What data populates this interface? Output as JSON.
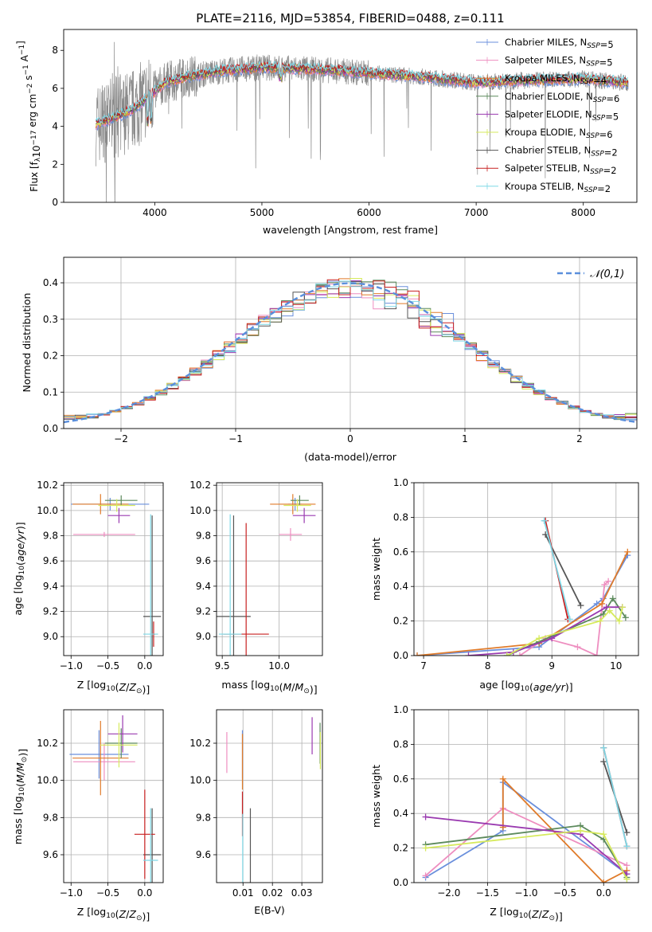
{
  "figure_title": "PLATE=2116, MJD=53854, FIBERID=0488, z=0.111",
  "colors": {
    "Chabrier MILES": "#6a8fdc",
    "Salpeter MILES": "#ee8ec0",
    "Kroupa MILES": "#e07b2a",
    "Chabrier ELODIE": "#5c8a5c",
    "Salpeter ELODIE": "#9a3ab0",
    "Kroupa ELODIE": "#d6ea5c",
    "Chabrier STELIB": "#555555",
    "Salpeter STELIB": "#c82020",
    "Kroupa STELIB": "#7ed8e6"
  },
  "chart_data": [
    {
      "id": "spectrum",
      "type": "line",
      "xlabel": "wavelength [Angstrom, rest frame]",
      "ylabel_parts": [
        "Flux [f",
        "λ",
        "10",
        "−17",
        " erg cm",
        "−2",
        " s",
        "−1",
        " A",
        "−1",
        "]"
      ],
      "xlim": [
        3150,
        8500
      ],
      "ylim": [
        0,
        9.1
      ],
      "xticks": [
        4000,
        5000,
        6000,
        7000,
        8000
      ],
      "yticks": [
        0,
        2,
        4,
        6,
        8
      ],
      "grid": false,
      "legend": "top-right",
      "legend_entries": [
        {
          "name": "Chabrier MILES",
          "nssp": "5"
        },
        {
          "name": "Salpeter MILES",
          "nssp": "5"
        },
        {
          "name": "Kroupa MILES",
          "nssp": "4"
        },
        {
          "name": "Chabrier ELODIE",
          "nssp": "6"
        },
        {
          "name": "Salpeter ELODIE",
          "nssp": "5"
        },
        {
          "name": "Kroupa ELODIE",
          "nssp": "6"
        },
        {
          "name": "Chabrier STELIB",
          "nssp": "2"
        },
        {
          "name": "Salpeter STELIB",
          "nssp": "2"
        },
        {
          "name": "Kroupa STELIB",
          "nssp": "2"
        }
      ],
      "continuum": [
        [
          3450,
          4.1
        ],
        [
          3600,
          4.4
        ],
        [
          3800,
          4.9
        ],
        [
          3950,
          5.6
        ],
        [
          4100,
          6.3
        ],
        [
          4300,
          6.6
        ],
        [
          4600,
          6.9
        ],
        [
          5000,
          7.1
        ],
        [
          5500,
          7.0
        ],
        [
          6000,
          6.8
        ],
        [
          6500,
          6.6
        ],
        [
          7000,
          6.3
        ],
        [
          7400,
          6.4
        ],
        [
          8000,
          6.5
        ],
        [
          8400,
          6.3
        ]
      ]
    },
    {
      "id": "residuals",
      "type": "histogram",
      "xlabel": "(data-model)/error",
      "ylabel": "Normed distribution",
      "xlim": [
        -2.5,
        2.5
      ],
      "ylim": [
        0,
        0.47
      ],
      "xticks": [
        -2,
        -1,
        0,
        1,
        2
      ],
      "yticks": [
        0.0,
        0.1,
        0.2,
        0.3,
        0.4
      ],
      "grid": true,
      "legend": "top-right",
      "reference_curve": {
        "name": "𝒩(0,1)",
        "mean": 0,
        "sigma": 1,
        "color": "#5a8fdc"
      },
      "bin_width": 0.1
    },
    {
      "id": "age-vs-Z",
      "type": "scatter",
      "xlabel_main": "Z [log",
      "xlabel_sub": "10",
      "xlabel_rest": "(Z/Z",
      "xlabel_sun": "⊙",
      "xlabel_end": ")]",
      "ylabel": "age  [log₁₀(age/yr)]",
      "xlim": [
        -1.1,
        0.25
      ],
      "ylim": [
        8.85,
        10.22
      ],
      "xticks": [
        -1.0,
        -0.5,
        0.0
      ],
      "yticks": [
        9.0,
        9.2,
        9.4,
        9.6,
        9.8,
        10.0,
        10.2
      ],
      "grid": true,
      "points": [
        {
          "model": "Chabrier MILES",
          "x": -0.47,
          "xerr": 0.53,
          "y": 10.05,
          "yerr": 0.05
        },
        {
          "model": "Salpeter MILES",
          "x": -0.55,
          "xerr": 0.42,
          "y": 9.81,
          "yerr": 0.02
        },
        {
          "model": "Kroupa MILES",
          "x": -0.6,
          "xerr": 0.38,
          "y": 10.05,
          "yerr": 0.08
        },
        {
          "model": "Chabrier ELODIE",
          "x": -0.32,
          "xerr": 0.22,
          "y": 10.08,
          "yerr": 0.04
        },
        {
          "model": "Salpeter ELODIE",
          "x": -0.35,
          "xerr": 0.15,
          "y": 9.96,
          "yerr": 0.06
        },
        {
          "model": "Kroupa ELODIE",
          "x": -0.38,
          "xerr": 0.25,
          "y": 10.04,
          "yerr": 0.05
        },
        {
          "model": "Chabrier STELIB",
          "x": 0.1,
          "xerr": 0.12,
          "y": 9.16,
          "yerr": 0.8
        },
        {
          "model": "Salpeter STELIB",
          "x": 0.12,
          "xerr": 0.02,
          "y": 9.02,
          "yerr": 0.1
        },
        {
          "model": "Kroupa STELIB",
          "x": 0.08,
          "xerr": 0.1,
          "y": 9.02,
          "yerr": 0.95
        }
      ]
    },
    {
      "id": "age-vs-mass",
      "type": "scatter",
      "xlabel_main": "mass [log",
      "xlabel_sub": "10",
      "xlabel_rest": "(M/M",
      "xlabel_sun": "⊙",
      "xlabel_end": ")]",
      "xlim": [
        9.45,
        10.38
      ],
      "ylim": [
        8.85,
        10.22
      ],
      "xticks": [
        9.5,
        10.0
      ],
      "yticks": [
        9.0,
        9.2,
        9.4,
        9.6,
        9.8,
        10.0,
        10.2
      ],
      "grid": true,
      "points": [
        {
          "model": "Chabrier MILES",
          "x": 10.14,
          "xerr": 0.06,
          "y": 10.05,
          "yerr": 0.05
        },
        {
          "model": "Salpeter MILES",
          "x": 10.1,
          "xerr": 0.1,
          "y": 9.81,
          "yerr": 0.05
        },
        {
          "model": "Kroupa MILES",
          "x": 10.12,
          "xerr": 0.2,
          "y": 10.05,
          "yerr": 0.08
        },
        {
          "model": "Chabrier ELODIE",
          "x": 10.18,
          "xerr": 0.08,
          "y": 10.08,
          "yerr": 0.04
        },
        {
          "model": "Salpeter ELODIE",
          "x": 10.22,
          "xerr": 0.1,
          "y": 9.96,
          "yerr": 0.06
        },
        {
          "model": "Kroupa ELODIE",
          "x": 10.16,
          "xerr": 0.12,
          "y": 10.04,
          "yerr": 0.05
        },
        {
          "model": "Chabrier STELIB",
          "x": 9.6,
          "xerr": 0.15,
          "y": 9.16,
          "yerr": 0.8
        },
        {
          "model": "Salpeter STELIB",
          "x": 9.71,
          "xerr": 0.2,
          "y": 9.02,
          "yerr": 0.88
        },
        {
          "model": "Kroupa STELIB",
          "x": 9.57,
          "xerr": 0.1,
          "y": 9.02,
          "yerr": 0.95
        }
      ]
    },
    {
      "id": "weight-vs-age",
      "type": "line",
      "xlabel_main": "age  [log",
      "xlabel_sub": "10",
      "xlabel_rest": "(age/yr)]",
      "ylabel": "mass weight",
      "xlim": [
        6.85,
        10.35
      ],
      "ylim": [
        0,
        1.0
      ],
      "xticks": [
        7,
        8,
        9,
        10
      ],
      "yticks": [
        0.0,
        0.2,
        0.4,
        0.6,
        0.8,
        1.0
      ],
      "grid": true,
      "series": [
        {
          "model": "Chabrier MILES",
          "x": [
            6.9,
            8.8,
            9.7,
            9.8,
            10.18
          ],
          "y": [
            0.0,
            0.05,
            0.3,
            0.33,
            0.58
          ]
        },
        {
          "model": "Salpeter MILES",
          "x": [
            8.5,
            8.9,
            9.4,
            9.7,
            9.82,
            9.88
          ],
          "y": [
            0.0,
            0.1,
            0.05,
            0.0,
            0.41,
            0.43
          ]
        },
        {
          "model": "Kroupa MILES",
          "x": [
            6.9,
            8.8,
            9.78,
            10.18
          ],
          "y": [
            0.0,
            0.07,
            0.3,
            0.6
          ]
        },
        {
          "model": "Chabrier ELODIE",
          "x": [
            8.3,
            8.8,
            9.8,
            9.95,
            10.15
          ],
          "y": [
            0.0,
            0.08,
            0.24,
            0.33,
            0.22
          ]
        },
        {
          "model": "Salpeter ELODIE",
          "x": [
            7.7,
            8.4,
            9.0,
            9.85,
            10.1
          ],
          "y": [
            0.0,
            0.02,
            0.1,
            0.28,
            0.28
          ]
        },
        {
          "model": "Kroupa ELODIE",
          "x": [
            8.3,
            8.8,
            9.75,
            9.9,
            10.05,
            10.1
          ],
          "y": [
            0.0,
            0.1,
            0.2,
            0.26,
            0.2,
            0.28
          ]
        },
        {
          "model": "Chabrier STELIB",
          "x": [
            8.9,
            9.45
          ],
          "y": [
            0.7,
            0.29
          ]
        },
        {
          "model": "Salpeter STELIB",
          "x": [
            8.9,
            9.25
          ],
          "y": [
            0.78,
            0.21
          ]
        },
        {
          "model": "Kroupa STELIB",
          "x": [
            8.88,
            9.28
          ],
          "y": [
            0.78,
            0.21
          ]
        }
      ]
    },
    {
      "id": "mass-vs-Z",
      "type": "scatter",
      "xlabel_main": "Z [log",
      "xlabel_sub": "10",
      "xlabel_rest": "(Z/Z",
      "xlabel_sun": "⊙",
      "xlabel_end": ")]",
      "ylabel_main": "mass [log",
      "ylabel_sub": "10",
      "ylabel_rest": "(M/M",
      "ylabel_sun": "⊙",
      "ylabel_end": ")]",
      "xlim": [
        -1.1,
        0.25
      ],
      "ylim": [
        9.45,
        10.38
      ],
      "xticks": [
        -1.0,
        -0.5,
        0.0
      ],
      "yticks": [
        9.6,
        9.8,
        10.0,
        10.2
      ],
      "grid": true,
      "points": [
        {
          "model": "Chabrier MILES",
          "x": -0.62,
          "xerr": 0.4,
          "y": 10.14,
          "yerr": 0.13
        },
        {
          "model": "Salpeter MILES",
          "x": -0.55,
          "xerr": 0.42,
          "y": 10.1,
          "yerr": 0.1
        },
        {
          "model": "Kroupa MILES",
          "x": -0.6,
          "xerr": 0.38,
          "y": 10.12,
          "yerr": 0.2
        },
        {
          "model": "Chabrier ELODIE",
          "x": -0.32,
          "xerr": 0.22,
          "y": 10.2,
          "yerr": 0.08
        },
        {
          "model": "Salpeter ELODIE",
          "x": -0.3,
          "xerr": 0.2,
          "y": 10.25,
          "yerr": 0.1
        },
        {
          "model": "Kroupa ELODIE",
          "x": -0.35,
          "xerr": 0.25,
          "y": 10.19,
          "yerr": 0.12
        },
        {
          "model": "Chabrier STELIB",
          "x": 0.1,
          "xerr": 0.12,
          "y": 9.6,
          "yerr": 0.25
        },
        {
          "model": "Salpeter STELIB",
          "x": 0.0,
          "xerr": 0.14,
          "y": 9.71,
          "yerr": 0.24
        },
        {
          "model": "Kroupa STELIB",
          "x": 0.08,
          "xerr": 0.1,
          "y": 9.57,
          "yerr": 0.28
        }
      ]
    },
    {
      "id": "mass-vs-EBV",
      "type": "scatter",
      "xlabel": "E(B-V)",
      "xlim": [
        0.001,
        0.037
      ],
      "ylim": [
        9.45,
        10.38
      ],
      "xticks": [
        0.01,
        0.02,
        0.03
      ],
      "yticks": [
        9.6,
        9.8,
        10.0,
        10.2
      ],
      "grid": true,
      "points": [
        {
          "model": "Chabrier MILES",
          "x": 0.0098,
          "xerr": 0,
          "y": 10.14,
          "yerr": 0.13
        },
        {
          "model": "Salpeter MILES",
          "x": 0.0045,
          "xerr": 0,
          "y": 10.15,
          "yerr": 0.11
        },
        {
          "model": "Kroupa MILES",
          "x": 0.0098,
          "xerr": 0,
          "y": 10.1,
          "yerr": 0.15
        },
        {
          "model": "Chabrier ELODIE",
          "x": 0.0362,
          "xerr": 0,
          "y": 10.2,
          "yerr": 0.11
        },
        {
          "model": "Salpeter ELODIE",
          "x": 0.0335,
          "xerr": 0,
          "y": 10.24,
          "yerr": 0.1
        },
        {
          "model": "Kroupa ELODIE",
          "x": 0.0363,
          "xerr": 0,
          "y": 10.16,
          "yerr": 0.1
        },
        {
          "model": "Chabrier STELIB",
          "x": 0.0125,
          "xerr": 0,
          "y": 9.63,
          "yerr": 0.22
        },
        {
          "model": "Salpeter STELIB",
          "x": 0.0098,
          "xerr": 0,
          "y": 9.82,
          "yerr": 0.12
        },
        {
          "model": "Kroupa STELIB",
          "x": 0.0099,
          "xerr": 0,
          "y": 9.62,
          "yerr": 0.2
        }
      ]
    },
    {
      "id": "weight-vs-Z",
      "type": "line",
      "xlabel_main": "Z [log",
      "xlabel_sub": "10",
      "xlabel_rest": "(Z/Z",
      "xlabel_sun": "⊙",
      "xlabel_end": ")]",
      "ylabel": "mass weight",
      "xlim": [
        -2.45,
        0.45
      ],
      "ylim": [
        0,
        1.0
      ],
      "xticks": [
        -2.0,
        -1.5,
        -1.0,
        -0.5,
        0.0
      ],
      "yticks": [
        0.0,
        0.2,
        0.4,
        0.6,
        0.8,
        1.0
      ],
      "grid": true,
      "series": [
        {
          "model": "Chabrier MILES",
          "x": [
            -2.3,
            -1.3,
            -1.3,
            0.3
          ],
          "y": [
            0.03,
            0.3,
            0.58,
            0.05
          ]
        },
        {
          "model": "Salpeter MILES",
          "x": [
            -2.3,
            -1.3,
            0.3
          ],
          "y": [
            0.04,
            0.43,
            0.1
          ]
        },
        {
          "model": "Kroupa MILES",
          "x": [
            -1.3,
            -1.3,
            0.0,
            0.3
          ],
          "y": [
            0.32,
            0.6,
            0.0,
            0.07
          ]
        },
        {
          "model": "Chabrier ELODIE",
          "x": [
            -2.3,
            -0.3,
            0.0,
            0.3
          ],
          "y": [
            0.22,
            0.33,
            0.25,
            0.03
          ]
        },
        {
          "model": "Salpeter ELODIE",
          "x": [
            -2.3,
            -0.3,
            0.3
          ],
          "y": [
            0.38,
            0.28,
            0.05
          ]
        },
        {
          "model": "Kroupa ELODIE",
          "x": [
            -2.3,
            -0.3,
            0.0,
            0.3
          ],
          "y": [
            0.2,
            0.3,
            0.28,
            0.02
          ]
        },
        {
          "model": "Chabrier STELIB",
          "x": [
            0.0,
            0.3
          ],
          "y": [
            0.7,
            0.29
          ]
        },
        {
          "model": "Salpeter STELIB",
          "x": [
            0.0,
            0.3
          ],
          "y": [
            0.78,
            0.21
          ]
        },
        {
          "model": "Kroupa STELIB",
          "x": [
            0.0,
            0.3
          ],
          "y": [
            0.78,
            0.21
          ]
        }
      ]
    }
  ]
}
